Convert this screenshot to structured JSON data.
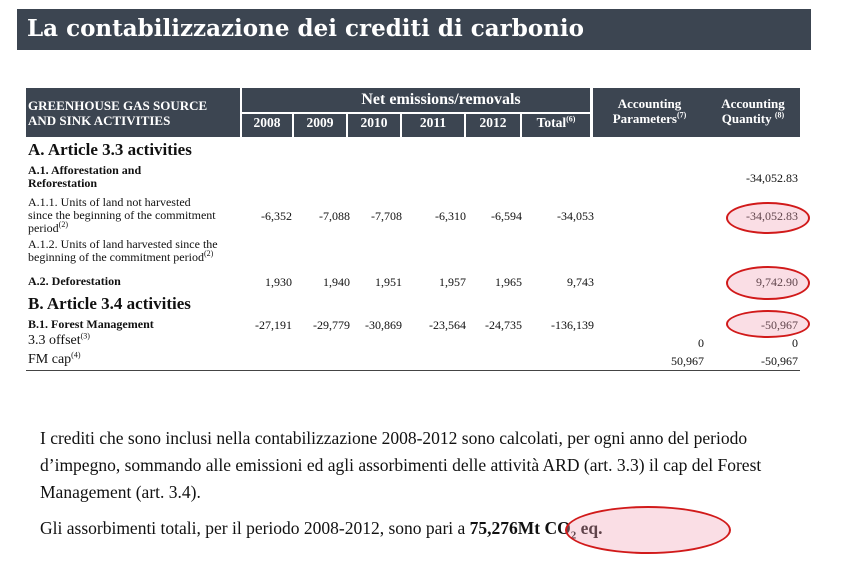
{
  "title": "La contabilizzazione dei crediti di carbonio",
  "table": {
    "header": {
      "activities_line1": "GREENHOUSE GAS SOURCE",
      "activities_line2": "AND SINK ACTIVITIES",
      "net_emissions": "Net emissions/removals",
      "years": [
        "2008",
        "2009",
        "2010",
        "2011",
        "2012"
      ],
      "total": "Total",
      "total_note": "(6)",
      "acc_params_line1": "Accounting",
      "acc_params_line2": "Parameters",
      "acc_params_note": "(7)",
      "acc_qty_line1": "Accounting",
      "acc_qty_line2": "Quantity",
      "acc_qty_note": "(8)"
    },
    "section_a": "A. Article 3.3 activities",
    "section_b": "B. Article 3.4 activities",
    "rows": {
      "a1": {
        "label_line1": "A.1. Afforestation and",
        "label_line2": "Reforestation",
        "acc_qty": "-34,052.83"
      },
      "a11": {
        "label_line1": "A.1.1.  Units of land not harvested",
        "label_line2": "since the beginning of the commitment",
        "label_line3": "period",
        "note": "(2)",
        "values": [
          "-6,352",
          "-7,088",
          "-7,708",
          "-6,310",
          "-6,594"
        ],
        "total": "-34,053",
        "acc_qty": "-34,052.83"
      },
      "a12": {
        "label_line1": "A.1.2. Units of land harvested since the",
        "label_line2": "beginning of the commitment period",
        "note": "(2)"
      },
      "a2": {
        "label": "A.2. Deforestation",
        "values": [
          "1,930",
          "1,940",
          "1,951",
          "1,957",
          "1,965"
        ],
        "total": "9,743",
        "acc_qty": "9,742.90"
      },
      "b1": {
        "label": "B.1. Forest Management",
        "values": [
          "-27,191",
          "-29,779",
          "-30,869",
          "-23,564",
          "-24,735"
        ],
        "total": "-136,139",
        "acc_qty": "-50,967"
      },
      "offset": {
        "label": "3.3 offset",
        "note": "(3)",
        "acc_params": "0",
        "acc_qty": "0"
      },
      "fmcap": {
        "label": "FM cap",
        "note": "(4)",
        "acc_params": "50,967",
        "acc_qty": "-50,967"
      }
    }
  },
  "paragraph1": "I crediti che sono inclusi nella contabilizzazione 2008-2012 sono calcolati, per ogni anno del periodo d’impegno, sommando alle emissioni ed agli  assorbimenti delle attività ARD (art. 3.3) il cap  del Forest Management (art. 3.4).",
  "paragraph2_prefix": "Gli assorbimenti totali, per il periodo 2008-2012, sono pari a",
  "highlight_value": "75,276Mt CO",
  "highlight_sub": "2",
  "highlight_suffix": " eq.",
  "colors": {
    "header_bg": "#3c4551",
    "highlight_border": "#d11a1a",
    "highlight_fill": "#f0a0b4"
  }
}
